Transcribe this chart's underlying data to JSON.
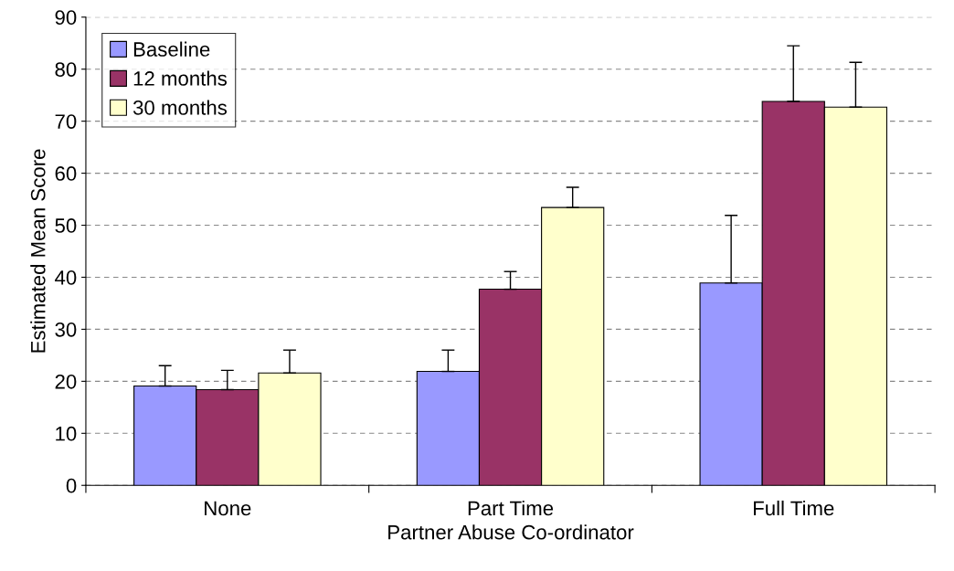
{
  "chart_data": {
    "type": "bar",
    "xlabel": "Partner Abuse Co-ordinator",
    "ylabel": "Estimated Mean Score",
    "categories": [
      "None",
      "Part Time",
      "Full Time"
    ],
    "series": [
      {
        "name": "Baseline",
        "color": "#9999ff",
        "values": [
          19.1,
          21.9,
          38.9
        ],
        "errors": [
          [
            19.1,
            23.0
          ],
          [
            21.9,
            26.0
          ],
          [
            38.9,
            51.9
          ]
        ]
      },
      {
        "name": "12 months",
        "color": "#993366",
        "values": [
          18.4,
          37.7,
          73.8
        ],
        "errors": [
          [
            18.4,
            22.1
          ],
          [
            37.7,
            41.1
          ],
          [
            73.8,
            84.5
          ]
        ]
      },
      {
        "name": "30 months",
        "color": "#ffffcc",
        "values": [
          21.6,
          53.4,
          72.7
        ],
        "errors": [
          [
            21.6,
            26.0
          ],
          [
            53.4,
            57.3
          ],
          [
            72.7,
            81.3
          ]
        ]
      }
    ],
    "ylim": [
      0,
      90
    ],
    "yticks": [
      0,
      10,
      20,
      30,
      40,
      50,
      60,
      70,
      80,
      90
    ],
    "grid": "y",
    "legend": "top left"
  }
}
